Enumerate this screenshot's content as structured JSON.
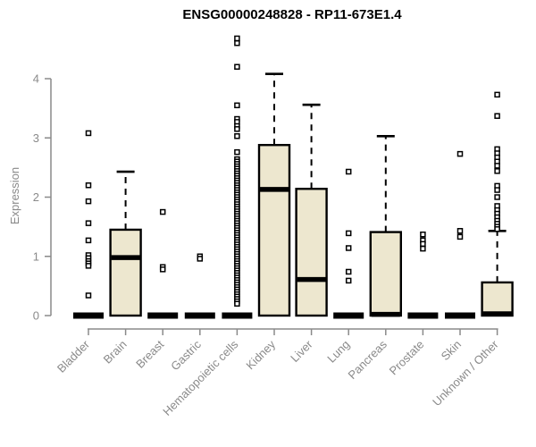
{
  "chart_data": {
    "type": "boxplot",
    "title": "ENSG00000248828 - RP11-673E1.4",
    "xlabel": "",
    "ylabel": "Expression",
    "ylim": [
      0,
      4.7
    ],
    "yticks": [
      0,
      1,
      2,
      3,
      4
    ],
    "grid": false,
    "legend": "none",
    "box_fill": "#EDE7CF",
    "box_stroke": "#000000",
    "axis_color": "#8a8a8a",
    "categories": [
      "Bladder",
      "Brain",
      "Breast",
      "Gastric",
      "Hematopoietic cells",
      "Kidney",
      "Liver",
      "Lung",
      "Pancreas",
      "Prostate",
      "Skin",
      "Unknown / Other"
    ],
    "series": [
      {
        "name": "Bladder",
        "q1": 0,
        "median": 0,
        "q3": 0,
        "whisker_low": 0,
        "whisker_high": 0,
        "outliers": [
          3.08,
          2.2,
          1.93,
          1.56,
          1.27,
          1.02,
          0.97,
          0.92,
          0.88,
          0.84,
          0.34
        ]
      },
      {
        "name": "Brain",
        "q1": 0,
        "median": 0.98,
        "q3": 1.45,
        "whisker_low": 0,
        "whisker_high": 2.43,
        "outliers": []
      },
      {
        "name": "Breast",
        "q1": 0,
        "median": 0,
        "q3": 0,
        "whisker_low": 0,
        "whisker_high": 0,
        "outliers": [
          1.75,
          0.82,
          0.78
        ]
      },
      {
        "name": "Gastric",
        "q1": 0,
        "median": 0,
        "q3": 0,
        "whisker_low": 0,
        "whisker_high": 0,
        "outliers": [
          1.0,
          0.96
        ]
      },
      {
        "name": "Hematopoietic cells",
        "q1": 0,
        "median": 0,
        "q3": 0,
        "whisker_low": 0,
        "whisker_high": 0,
        "outliers": [
          4.68,
          4.6,
          4.2,
          3.55,
          3.32,
          3.27,
          3.2,
          3.15,
          3.03,
          2.76,
          2.64,
          2.6,
          2.56,
          2.52,
          2.48,
          2.44,
          2.4,
          2.36,
          2.32,
          2.28,
          2.24,
          2.2,
          2.16,
          2.12,
          2.08,
          2.04,
          2.0,
          1.96,
          1.92,
          1.88,
          1.84,
          1.8,
          1.76,
          1.72,
          1.68,
          1.64,
          1.6,
          1.56,
          1.52,
          1.48,
          1.44,
          1.4,
          1.36,
          1.32,
          1.28,
          1.24,
          1.2,
          1.16,
          1.12,
          1.08,
          1.04,
          1.0,
          0.96,
          0.92,
          0.88,
          0.84,
          0.8,
          0.76,
          0.72,
          0.68,
          0.64,
          0.6,
          0.56,
          0.52,
          0.48,
          0.44,
          0.4,
          0.36,
          0.32,
          0.28,
          0.24,
          0.2
        ]
      },
      {
        "name": "Kidney",
        "q1": 0,
        "median": 2.13,
        "q3": 2.88,
        "whisker_low": 0,
        "whisker_high": 4.08,
        "outliers": []
      },
      {
        "name": "Liver",
        "q1": 0,
        "median": 0.61,
        "q3": 2.14,
        "whisker_low": 0,
        "whisker_high": 3.56,
        "outliers": []
      },
      {
        "name": "Lung",
        "q1": 0,
        "median": 0,
        "q3": 0,
        "whisker_low": 0,
        "whisker_high": 0,
        "outliers": [
          2.43,
          1.39,
          1.14,
          0.74,
          0.59
        ]
      },
      {
        "name": "Pancreas",
        "q1": 0,
        "median": 0.02,
        "q3": 1.41,
        "whisker_low": 0,
        "whisker_high": 3.03,
        "outliers": []
      },
      {
        "name": "Prostate",
        "q1": 0,
        "median": 0,
        "q3": 0,
        "whisker_low": 0,
        "whisker_high": 0,
        "outliers": [
          1.37,
          1.27,
          1.21,
          1.13
        ]
      },
      {
        "name": "Skin",
        "q1": 0,
        "median": 0,
        "q3": 0,
        "whisker_low": 0,
        "whisker_high": 0,
        "outliers": [
          2.73,
          1.43,
          1.33
        ]
      },
      {
        "name": "Unknown / Other",
        "q1": 0,
        "median": 0.03,
        "q3": 0.56,
        "whisker_low": 0,
        "whisker_high": 1.43,
        "outliers": [
          3.73,
          3.37,
          2.81,
          2.74,
          2.67,
          2.6,
          2.53,
          2.44,
          2.19,
          2.12,
          2.0,
          1.85,
          1.78,
          1.72,
          1.66,
          1.6,
          1.55,
          1.5,
          1.46
        ]
      }
    ]
  }
}
